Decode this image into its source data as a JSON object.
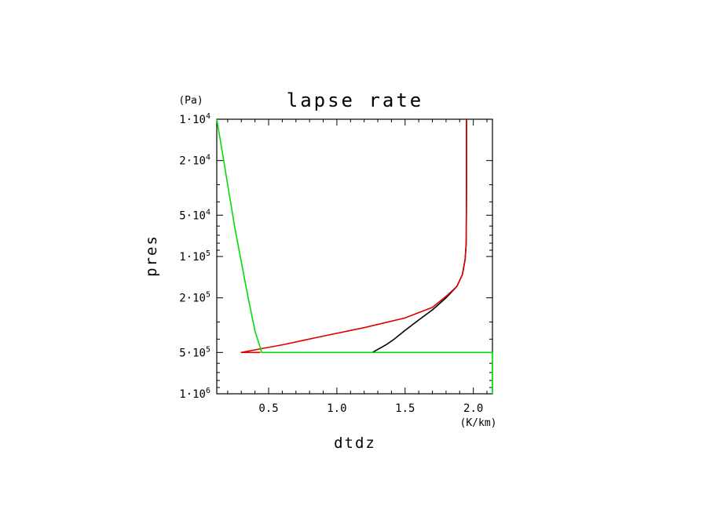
{
  "chart_data": {
    "type": "line",
    "title": "lapse rate",
    "xlabel": "dtdz",
    "ylabel": "pres",
    "x_unit": "(K/km)",
    "y_unit": "(Pa)",
    "xlim": [
      0.12,
      2.14
    ],
    "ylim": [
      10000,
      1000000
    ],
    "y_scale": "log",
    "y_inverted": true,
    "grid": false,
    "x_ticks": [
      {
        "value": 0.5,
        "label": "0.5"
      },
      {
        "value": 1.0,
        "label": "1.0"
      },
      {
        "value": 1.5,
        "label": "1.5"
      },
      {
        "value": 2.0,
        "label": "2.0"
      }
    ],
    "y_ticks": [
      {
        "value": 10000,
        "mant": "1·10",
        "exp": "4"
      },
      {
        "value": 20000,
        "mant": "2·10",
        "exp": "4"
      },
      {
        "value": 50000,
        "mant": "5·10",
        "exp": "4"
      },
      {
        "value": 100000,
        "mant": "1·10",
        "exp": "5"
      },
      {
        "value": 200000,
        "mant": "2·10",
        "exp": "5"
      },
      {
        "value": 500000,
        "mant": "5·10",
        "exp": "5"
      },
      {
        "value": 1000000,
        "mant": "1·10",
        "exp": "6"
      }
    ],
    "series": [
      {
        "color": "#000000",
        "points": [
          [
            1.95,
            10000
          ],
          [
            1.95,
            30000
          ],
          [
            1.948,
            80000
          ],
          [
            1.94,
            105000
          ],
          [
            1.92,
            135000
          ],
          [
            1.88,
            165000
          ],
          [
            1.8,
            200000
          ],
          [
            1.7,
            245000
          ],
          [
            1.6,
            290000
          ],
          [
            1.5,
            345000
          ],
          [
            1.42,
            400000
          ],
          [
            1.36,
            440000
          ],
          [
            1.3,
            475000
          ],
          [
            1.26,
            500000
          ]
        ]
      },
      {
        "color": "#dd0000",
        "points": [
          [
            1.95,
            10000
          ],
          [
            1.95,
            30000
          ],
          [
            1.948,
            80000
          ],
          [
            1.94,
            105000
          ],
          [
            1.92,
            135000
          ],
          [
            1.88,
            165000
          ],
          [
            1.8,
            195000
          ],
          [
            1.7,
            235000
          ],
          [
            1.5,
            280000
          ],
          [
            1.2,
            330000
          ],
          [
            0.9,
            380000
          ],
          [
            0.6,
            440000
          ],
          [
            0.42,
            475000
          ],
          [
            0.3,
            500000
          ],
          [
            0.44,
            500000
          ]
        ]
      },
      {
        "color": "#00dd00",
        "points": [
          [
            0.12,
            10000
          ],
          [
            0.15,
            15000
          ],
          [
            0.2,
            30000
          ],
          [
            0.25,
            60000
          ],
          [
            0.3,
            110000
          ],
          [
            0.35,
            200000
          ],
          [
            0.4,
            350000
          ],
          [
            0.45,
            500000
          ],
          [
            2.14,
            500000
          ],
          [
            2.14,
            1000000
          ]
        ]
      }
    ]
  }
}
